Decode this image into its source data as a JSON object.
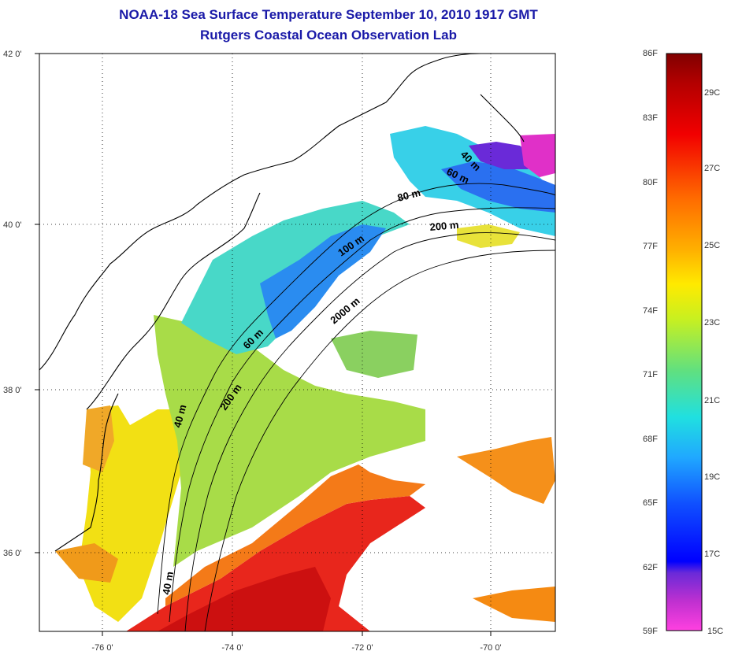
{
  "title": {
    "line1": "NOAA-18 Sea Surface Temperature September 10, 2010 1917 GMT",
    "line2": "Rutgers Coastal Ocean Observation Lab"
  },
  "axes": {
    "lat_ticks": [
      "42 0'",
      "40 0'",
      "38 0'",
      "36 0'"
    ],
    "lon_ticks": [
      "-76 0'",
      "-74 0'",
      "-72 0'",
      "-70 0'"
    ]
  },
  "contours": [
    "40 m",
    "60 m",
    "80 m",
    "100 m",
    "200 m",
    "2000 m",
    "200 m",
    "60 m",
    "40 m",
    "40 m"
  ],
  "colorbar": {
    "fahrenheit": [
      "86F",
      "83F",
      "80F",
      "77F",
      "74F",
      "71F",
      "68F",
      "65F",
      "62F",
      "59F"
    ],
    "celsius": [
      "29C",
      "27C",
      "25C",
      "23C",
      "21C",
      "19C",
      "17C",
      "15C"
    ]
  },
  "colors": {
    "title": "#1a1aa8",
    "warm": "#e8201a",
    "orange": "#f58a12",
    "yellow": "#f2e812",
    "green": "#9ad84a",
    "cyan": "#3fd8d8",
    "blue": "#2a70f0",
    "violet": "#6a2ad8",
    "magenta": "#e030c8"
  }
}
